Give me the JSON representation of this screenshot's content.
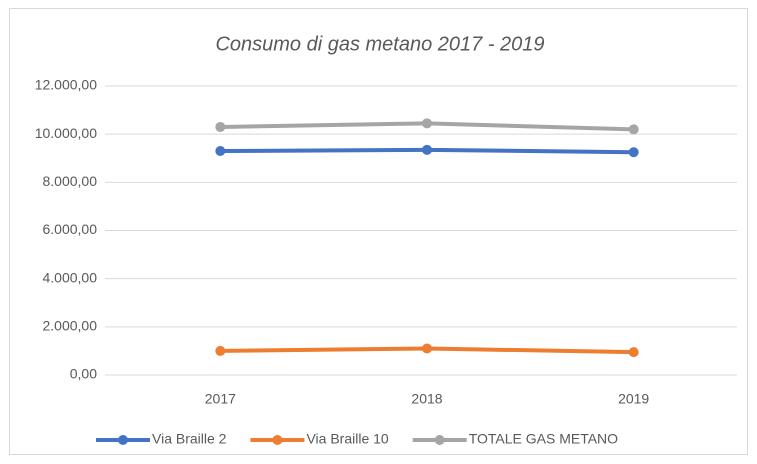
{
  "chart_data": {
    "type": "line",
    "title": "Consumo di gas metano 2017 - 2019",
    "categories": [
      "2017",
      "2018",
      "2019"
    ],
    "series": [
      {
        "name": "Via Braille 2",
        "color": "#4472c4",
        "values": [
          9300,
          9350,
          9250
        ]
      },
      {
        "name": "Via Braille 10",
        "color": "#ed7d31",
        "values": [
          1000,
          1100,
          950
        ]
      },
      {
        "name": "TOTALE GAS METANO",
        "color": "#a5a5a5",
        "values": [
          10300,
          10450,
          10200
        ]
      }
    ],
    "ylim": [
      0,
      12000
    ],
    "yticks": [
      {
        "value": 0,
        "label": "0,00"
      },
      {
        "value": 2000,
        "label": "2.000,00"
      },
      {
        "value": 4000,
        "label": "4.000,00"
      },
      {
        "value": 6000,
        "label": "6.000,00"
      },
      {
        "value": 8000,
        "label": "8.000,00"
      },
      {
        "value": 10000,
        "label": "10.000,00"
      },
      {
        "value": 12000,
        "label": "12.000,00"
      }
    ],
    "grid": true,
    "legend": "bottom"
  }
}
